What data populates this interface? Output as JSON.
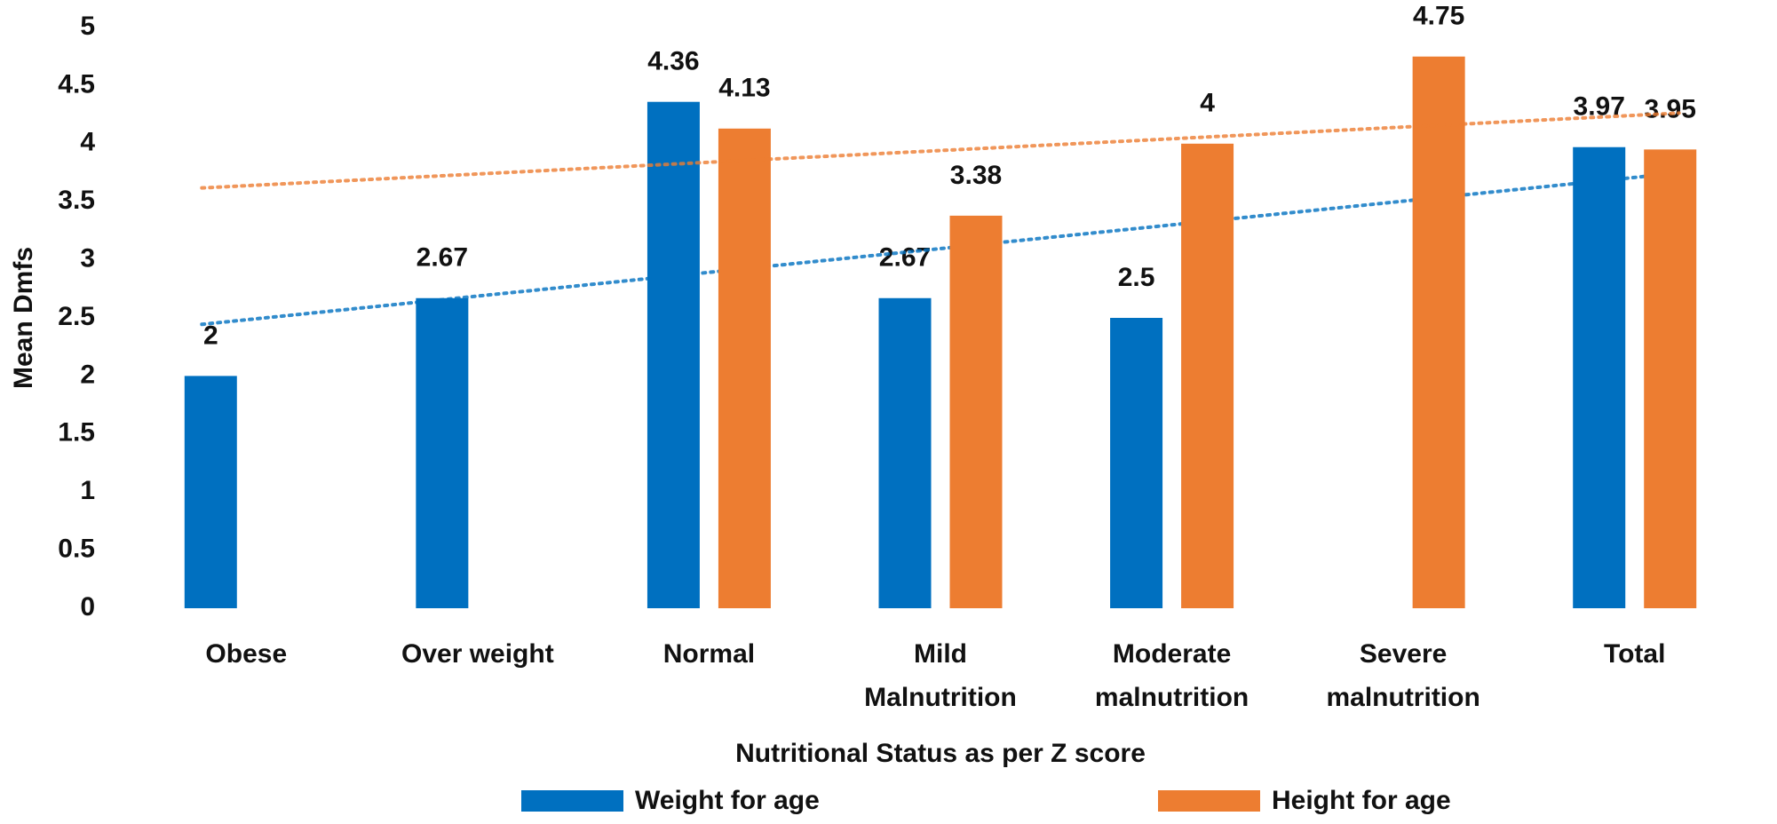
{
  "chart_data": {
    "type": "bar",
    "x_label": "Nutritional Status as per Z score",
    "y_label": "Mean Dmfs",
    "categories": [
      "Obese",
      "Over weight",
      "Normal",
      "Mild\nMalnutrition",
      "Moderate\nmalnutrition",
      "Severe\nmalnutrition",
      "Total"
    ],
    "series": [
      {
        "name": "Weight for age",
        "color": "#0070c0",
        "values": [
          2,
          2.67,
          4.36,
          2.67,
          2.5,
          null,
          3.97
        ]
      },
      {
        "name": "Height for age",
        "color": "#ed7d31",
        "values": [
          null,
          null,
          4.13,
          3.38,
          4,
          4.75,
          3.95
        ]
      }
    ],
    "ylim": [
      0,
      5
    ],
    "yticks": [
      0,
      0.5,
      1,
      1.5,
      2,
      2.5,
      3,
      3.5,
      4,
      4.5,
      5
    ],
    "trendline": "linear",
    "grid": false,
    "legend": "bottom"
  }
}
